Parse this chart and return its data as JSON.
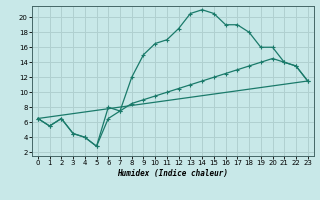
{
  "xlabel": "Humidex (Indice chaleur)",
  "bg_color": "#c8e8e8",
  "line_color": "#1a7a6a",
  "grid_color": "#b0d0d0",
  "xlim": [
    -0.5,
    23.5
  ],
  "ylim": [
    1.5,
    21.5
  ],
  "xticks": [
    0,
    1,
    2,
    3,
    4,
    5,
    6,
    7,
    8,
    9,
    10,
    11,
    12,
    13,
    14,
    15,
    16,
    17,
    18,
    19,
    20,
    21,
    22,
    23
  ],
  "yticks": [
    2,
    4,
    6,
    8,
    10,
    12,
    14,
    16,
    18,
    20
  ],
  "line1_x": [
    0,
    1,
    2,
    3,
    4,
    5,
    6,
    7,
    8,
    9,
    10,
    11,
    12,
    13,
    14,
    15,
    16,
    17,
    18,
    19,
    20,
    21,
    22,
    23
  ],
  "line1_y": [
    6.5,
    5.5,
    6.5,
    4.5,
    4.0,
    2.8,
    8.0,
    7.5,
    12.0,
    15.0,
    16.5,
    17.0,
    18.5,
    20.5,
    21.0,
    20.5,
    19.0,
    19.0,
    18.0,
    16.0,
    16.0,
    14.0,
    13.5,
    11.5
  ],
  "line2_x": [
    0,
    1,
    2,
    3,
    4,
    5,
    6,
    7,
    8,
    9,
    10,
    11,
    12,
    13,
    14,
    15,
    16,
    17,
    18,
    19,
    20,
    21,
    22,
    23
  ],
  "line2_y": [
    6.5,
    5.5,
    6.5,
    4.5,
    4.0,
    2.8,
    6.5,
    7.5,
    8.5,
    9.0,
    9.5,
    10.0,
    10.5,
    11.0,
    11.5,
    12.0,
    12.5,
    13.0,
    13.5,
    14.0,
    14.5,
    14.0,
    13.5,
    11.5
  ],
  "line3_x": [
    0,
    23
  ],
  "line3_y": [
    6.5,
    11.5
  ]
}
